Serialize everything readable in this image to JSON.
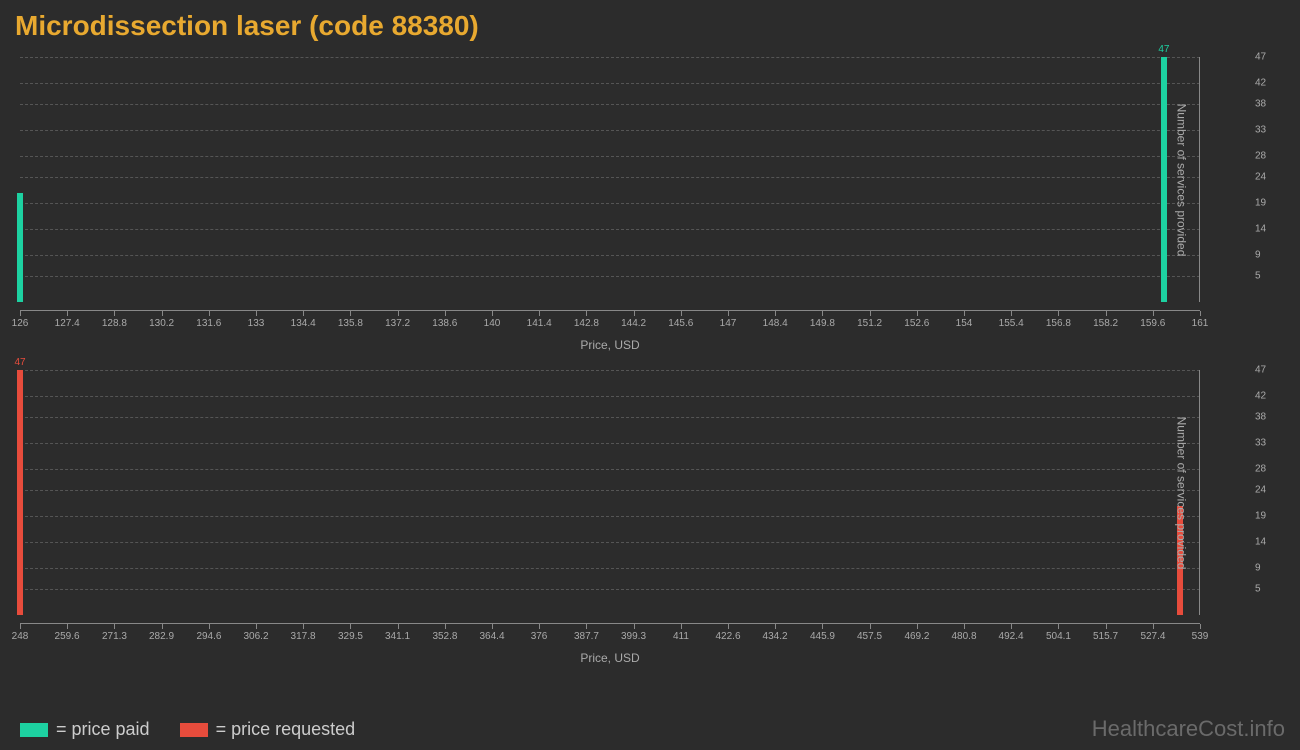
{
  "title": "Microdissection laser (code 88380)",
  "title_color": "#e8a930",
  "background_color": "#2c2c2c",
  "grid_color": "#555555",
  "axis_color": "#888888",
  "tick_label_color": "#aaaaaa",
  "chart1": {
    "type": "bar",
    "color": "#1dd1a1",
    "xmin": 126,
    "xmax": 161,
    "xtick_step": 1.4,
    "xticks": [
      "126",
      "127.4",
      "128.8",
      "130.2",
      "131.6",
      "133",
      "134.4",
      "135.8",
      "137.2",
      "138.6",
      "140",
      "141.4",
      "142.8",
      "144.2",
      "145.6",
      "147",
      "148.4",
      "149.8",
      "151.2",
      "152.6",
      "154",
      "155.4",
      "156.8",
      "158.2",
      "159.6",
      "161"
    ],
    "ymin": 0,
    "ymax": 47,
    "yticks": [
      5,
      9,
      14,
      19,
      24,
      28,
      33,
      38,
      42,
      47
    ],
    "xlabel": "Price, USD",
    "ylabel": "Number of services provided",
    "bars": [
      {
        "x": 126,
        "y": 21,
        "show_label": false
      },
      {
        "x": 159.93,
        "y": 47,
        "show_label": true,
        "label": "47"
      }
    ]
  },
  "chart2": {
    "type": "bar",
    "color": "#e74c3c",
    "xmin": 248,
    "xmax": 539,
    "xticks": [
      "248",
      "259.6",
      "271.3",
      "282.9",
      "294.6",
      "306.2",
      "317.8",
      "329.5",
      "341.1",
      "352.8",
      "364.4",
      "376",
      "387.7",
      "399.3",
      "411",
      "422.6",
      "434.2",
      "445.9",
      "457.5",
      "469.2",
      "480.8",
      "492.4",
      "504.1",
      "515.7",
      "527.4",
      "539"
    ],
    "ymin": 0,
    "ymax": 47,
    "yticks": [
      5,
      9,
      14,
      19,
      24,
      28,
      33,
      38,
      42,
      47
    ],
    "xlabel": "Price, USD",
    "ylabel": "Number of services provided",
    "bars": [
      {
        "x": 248,
        "y": 47,
        "show_label": true,
        "label": "47"
      },
      {
        "x": 534,
        "y": 21,
        "show_label": false
      }
    ]
  },
  "legend": [
    {
      "color": "#1dd1a1",
      "label": "= price paid"
    },
    {
      "color": "#e74c3c",
      "label": "= price requested"
    }
  ],
  "watermark": "HealthcareCost.info"
}
